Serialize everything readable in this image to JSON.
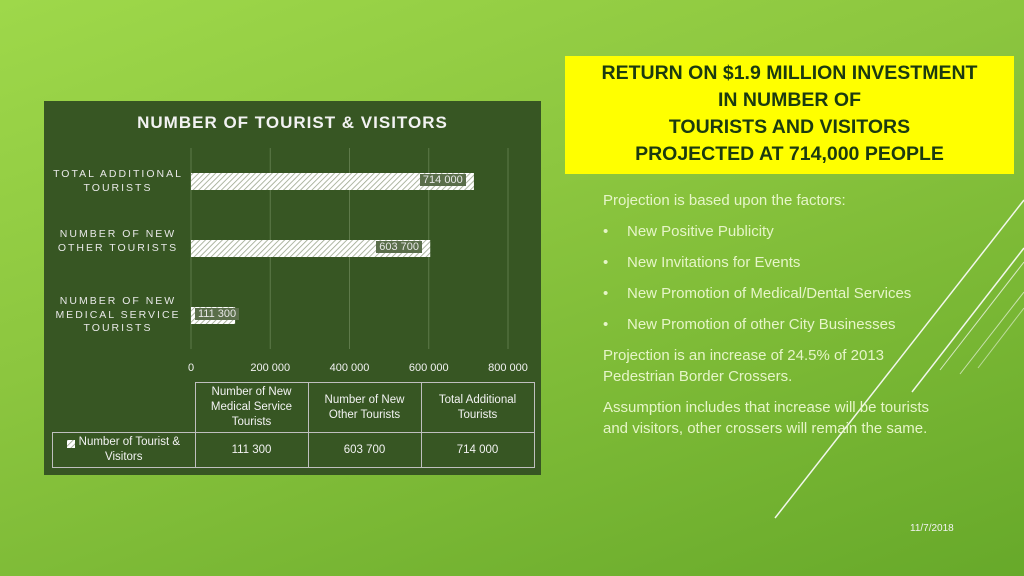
{
  "chart_data": {
    "type": "bar",
    "orientation": "horizontal",
    "title": "NUMBER OF TOURIST & VISITORS",
    "categories": [
      "Number of New Medical Service Tourists",
      "Number of New Other Tourists",
      "Total Additional Tourists"
    ],
    "category_labels_display": [
      "NUMBER OF NEW MEDICAL SERVICE TOURISTS",
      "NUMBER OF NEW OTHER TOURISTS",
      "TOTAL ADDITIONAL TOURISTS"
    ],
    "series": [
      {
        "name": "Number of Tourist & Visitors",
        "values": [
          111300,
          603700,
          714000
        ]
      }
    ],
    "data_labels": [
      "111 300",
      "603 700",
      "714 000"
    ],
    "xlim": [
      0,
      800000
    ],
    "x_ticks": [
      "0",
      "200 000",
      "400 000",
      "600 000",
      "800 000"
    ],
    "grid": true,
    "data_table": {
      "headers": [
        "Number of New Medical Service Tourists",
        "Number of New Other Tourists",
        "Total Additional Tourists"
      ],
      "row_label": "Number of Tourist & Visitors",
      "values": [
        "111 300",
        "603 700",
        "714 000"
      ]
    }
  },
  "slide": {
    "title": "RETURN ON $1.9 MILLION INVESTMENT IN NUMBER OF TOURISTS AND VISITORS PROJECTED AT 714,000 PEOPLE",
    "title_lines": [
      "RETURN ON $1.9 MILLION INVESTMENT",
      "IN NUMBER OF",
      "TOURISTS AND VISITORS",
      "PROJECTED AT 714,000 PEOPLE"
    ],
    "intro": "Projection is based upon the factors:",
    "bullets": [
      "New Positive Publicity",
      "New Invitations for Events",
      "New Promotion of Medical/Dental Services",
      "New Promotion of other City Businesses"
    ],
    "bullet_glyph": "•",
    "para1": "Projection is an increase of 24.5% of 2013 Pedestrian Border Crossers.",
    "para2": "Assumption includes that increase will be tourists and visitors, other crossers will remain the same.",
    "date": "11/7/2018"
  },
  "colors": {
    "background": "#8cc63f",
    "chart_panel": "#375623",
    "title_box": "#ffff00",
    "title_text": "#1b3a10",
    "bar_fill": "#ffffff"
  }
}
